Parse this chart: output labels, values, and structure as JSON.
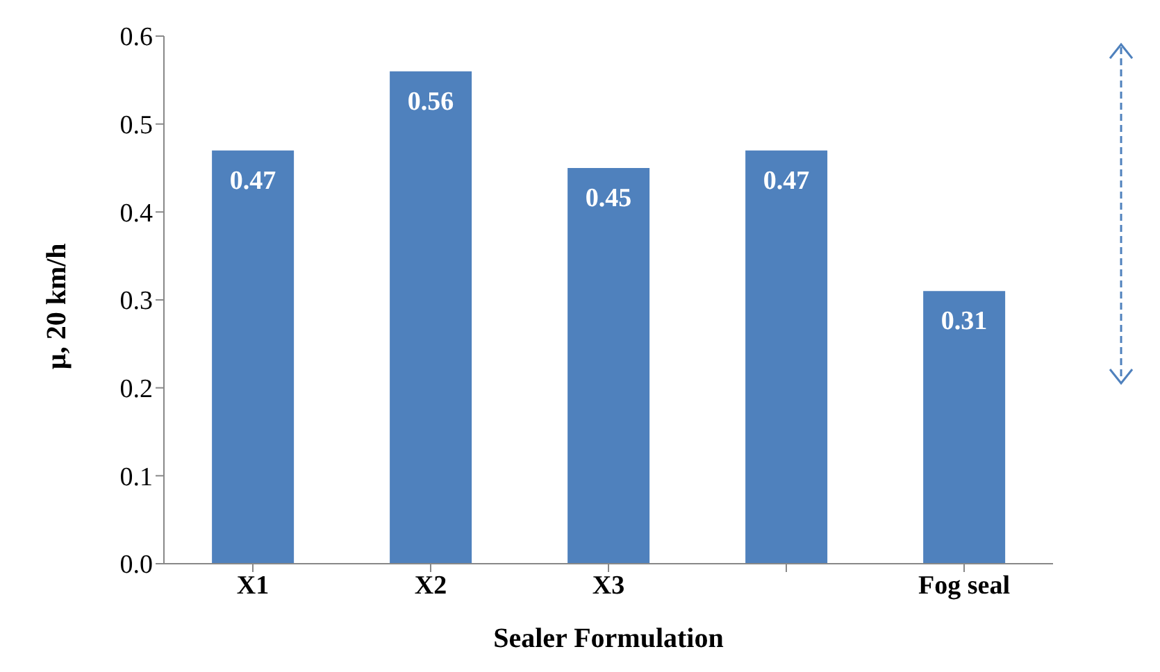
{
  "chart_data": {
    "type": "bar",
    "xlabel": "Sealer Formulation",
    "ylabel": "μ, 20 km/h",
    "categories": [
      "X1",
      "X2",
      "X3",
      null,
      "Fog seal"
    ],
    "values": [
      0.47,
      0.56,
      0.45,
      0.47,
      0.31
    ],
    "color": "#4f81bd",
    "ylim": [
      0,
      0.6
    ],
    "yticks": [
      {
        "value": 0,
        "label": "0.0"
      },
      0.1,
      0.2,
      0.3,
      0.4,
      0.5,
      0.6
    ],
    "data_labels": true,
    "grid": false,
    "legend": false
  }
}
